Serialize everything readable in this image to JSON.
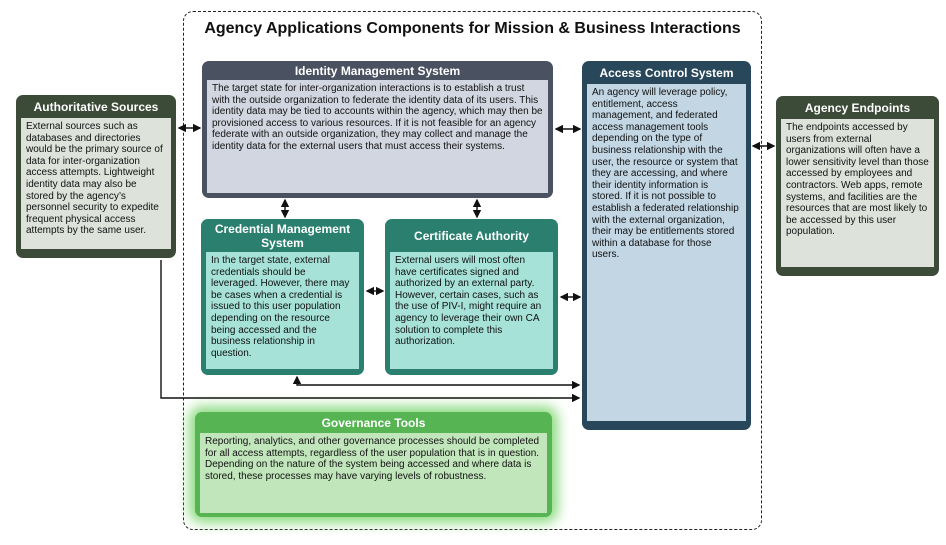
{
  "title": "Agency Applications Components for Mission & Business Interactions",
  "boxes": {
    "authoritative": {
      "title": "Authoritative Sources",
      "text": "External sources such as databases and directories would be the primary source of data for inter-organization access attempts. Lightweight identity data may also be stored by the agency’s personnel security to expedite frequent physical access attempts by the same user."
    },
    "identity": {
      "title": "Identity Management System",
      "text": "The target state for inter-organization interactions is to establish a trust with the outside organization to federate the identity data of its users. This identity data may be tied to accounts within the agency, which may then be provisioned access to various resources. If it is not feasible for an agency federate with an outside organization, they may collect and manage the identity data for the external users that must access their systems."
    },
    "access": {
      "title": "Access Control System",
      "text": "An agency will leverage policy, entitlement, access management, and federated access management tools depending on the type of business relationship with the user, the resource or system that they are accessing, and where their identity information is stored. If it is not possible to establish a federated relationship with the external organization, their may be entitlements stored within a database for those users."
    },
    "endpoints": {
      "title": "Agency Endpoints",
      "text": "The endpoints accessed by users from external organizations will often have a lower sensitivity level than those accessed by employees and contractors. Web apps, remote systems, and facilities are the resources that are most likely to be accessed by this user population."
    },
    "credential": {
      "title": "Credential Management System",
      "text": "In the target state, external credentials should be leveraged. However, there may be cases when a credential is issued to this user population depending on the resource being accessed and the business relationship in question."
    },
    "certificate": {
      "title": "Certificate Authority",
      "text": "External users will most often have certificates signed and authorized by an external party. However, certain cases, such as the use of PIV-I, might require an agency to leverage their own CA solution to complete this authorization."
    },
    "governance": {
      "title": "Governance Tools",
      "text": "Reporting, analytics, and other governance processes should be completed for all access attempts, regardless of the user population that is in question. Depending on the nature of the system being accessed and where data is stored, these processes may have varying levels of robustness."
    }
  }
}
